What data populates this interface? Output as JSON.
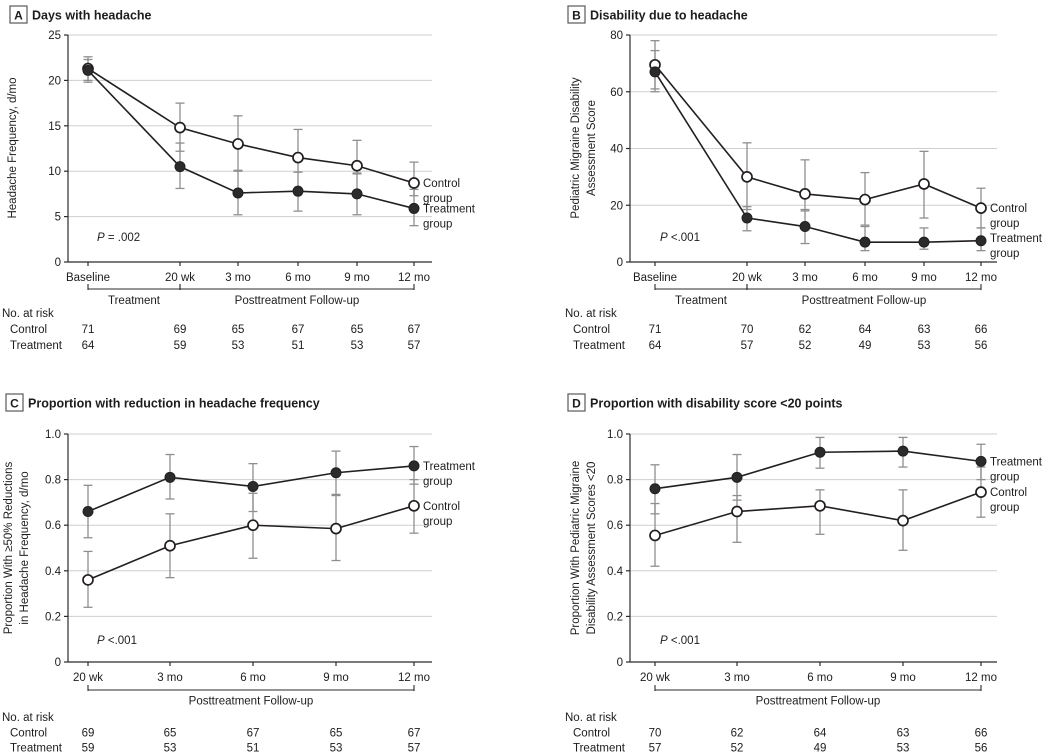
{
  "colors": {
    "line": "#231f20",
    "marker_fill": "#2b2b2b",
    "marker_open_fill": "#ffffff",
    "error_bar": "#8f8f8f",
    "gridline": "#cfcfcf",
    "axis": "#2b2b2b",
    "text": "#1d1d1f",
    "panel_box_border": "#58595b",
    "background": "#ffffff"
  },
  "chart_data": [
    {
      "id": "A",
      "type": "line",
      "panel_label": "A",
      "title": "Days with headache",
      "ylabel_lines": [
        "Headache Frequency, d/mo"
      ],
      "ylim": [
        0,
        25
      ],
      "yticks": [
        0,
        5,
        10,
        15,
        20,
        25
      ],
      "ytick_labels": [
        "0",
        "5",
        "10",
        "15",
        "20",
        "25"
      ],
      "categories": [
        "Baseline",
        "20 wk",
        "3 mo",
        "6 mo",
        "9 mo",
        "12 mo"
      ],
      "p_label": "P = .002",
      "grid": true,
      "legend_position": "right-of-last-point",
      "brackets": [
        {
          "from": 0,
          "to": 1,
          "label": "Treatment"
        },
        {
          "from": 1,
          "to": 5,
          "label": "Posttreatment Follow-up"
        }
      ],
      "series": [
        {
          "name": "Control group",
          "legend_lines": [
            "Control",
            "group"
          ],
          "marker": "open",
          "values": [
            21.3,
            14.8,
            13.0,
            11.5,
            10.6,
            8.7
          ],
          "ci_low": [
            20.0,
            12.2,
            10.0,
            9.9,
            9.7,
            7.3
          ],
          "ci_high": [
            22.6,
            17.5,
            16.1,
            14.6,
            13.4,
            11.0
          ]
        },
        {
          "name": "Treatment group",
          "legend_lines": [
            "Treatment",
            "group"
          ],
          "marker": "filled",
          "values": [
            21.1,
            10.5,
            7.6,
            7.8,
            7.5,
            5.9
          ],
          "ci_low": [
            19.8,
            8.1,
            5.2,
            5.6,
            5.2,
            4.0
          ],
          "ci_high": [
            22.3,
            13.1,
            10.1,
            9.9,
            9.8,
            8.0
          ]
        }
      ],
      "at_risk": {
        "title": "No. at risk",
        "rows": [
          {
            "label": "Control",
            "values": [
              "71",
              "69",
              "65",
              "67",
              "65",
              "67"
            ]
          },
          {
            "label": "Treatment",
            "values": [
              "64",
              "59",
              "53",
              "51",
              "53",
              "57"
            ]
          }
        ]
      }
    },
    {
      "id": "B",
      "type": "line",
      "panel_label": "B",
      "title": "Disability due to headache",
      "ylabel_lines": [
        "Pediatric Migraine Disability",
        "Assessment Score"
      ],
      "ylim": [
        0,
        80
      ],
      "yticks": [
        0,
        20,
        40,
        60,
        80
      ],
      "ytick_labels": [
        "0",
        "20",
        "40",
        "60",
        "80"
      ],
      "categories": [
        "Baseline",
        "20 wk",
        "3 mo",
        "6 mo",
        "9 mo",
        "12 mo"
      ],
      "p_label": "P <.001",
      "grid": true,
      "legend_position": "right-of-last-point",
      "brackets": [
        {
          "from": 0,
          "to": 1,
          "label": "Treatment"
        },
        {
          "from": 1,
          "to": 5,
          "label": "Posttreatment Follow-up"
        }
      ],
      "series": [
        {
          "name": "Control group",
          "legend_lines": [
            "Control",
            "group"
          ],
          "marker": "open",
          "values": [
            69.5,
            30,
            24,
            22,
            27.5,
            19
          ],
          "ci_low": [
            61,
            18.5,
            18,
            13,
            15.5,
            12
          ],
          "ci_high": [
            78,
            42,
            36,
            31.5,
            39,
            26
          ]
        },
        {
          "name": "Treatment group",
          "legend_lines": [
            "Treatment",
            "group"
          ],
          "marker": "filled",
          "values": [
            67,
            15.5,
            12.5,
            7,
            7,
            7.5
          ],
          "ci_low": [
            60,
            11,
            6.5,
            4,
            4.5,
            4
          ],
          "ci_high": [
            74.5,
            19.5,
            18.5,
            12.5,
            12,
            12
          ]
        }
      ],
      "at_risk": {
        "title": "No. at risk",
        "rows": [
          {
            "label": "Control",
            "values": [
              "71",
              "70",
              "62",
              "64",
              "63",
              "66"
            ]
          },
          {
            "label": "Treatment",
            "values": [
              "64",
              "57",
              "52",
              "49",
              "53",
              "56"
            ]
          }
        ]
      }
    },
    {
      "id": "C",
      "type": "line",
      "panel_label": "C",
      "title": "Proportion with reduction in headache frequency",
      "ylabel_lines": [
        "Proportion With ≥50% Reductions",
        "in Headache Frequency, d/mo"
      ],
      "ylim": [
        0,
        1
      ],
      "yticks": [
        0,
        0.2,
        0.4,
        0.6,
        0.8,
        1.0
      ],
      "ytick_labels": [
        "0",
        "0.2",
        "0.4",
        "0.6",
        "0.8",
        "1.0"
      ],
      "categories": [
        "20 wk",
        "3 mo",
        "6 mo",
        "9 mo",
        "12 mo"
      ],
      "p_label": "P <.001",
      "grid": true,
      "legend_position": "right-of-last-point",
      "brackets": [
        {
          "from": 0,
          "to": 4,
          "label": "Posttreatment Follow-up"
        }
      ],
      "series": [
        {
          "name": "Treatment group",
          "legend_lines": [
            "Treatment",
            "group"
          ],
          "marker": "filled",
          "values": [
            0.66,
            0.81,
            0.77,
            0.83,
            0.86
          ],
          "ci_low": [
            0.545,
            0.715,
            0.66,
            0.735,
            0.78
          ],
          "ci_high": [
            0.775,
            0.91,
            0.87,
            0.925,
            0.945
          ]
        },
        {
          "name": "Control group",
          "legend_lines": [
            "Control",
            "group"
          ],
          "marker": "open",
          "values": [
            0.36,
            0.51,
            0.6,
            0.585,
            0.685
          ],
          "ci_low": [
            0.24,
            0.37,
            0.455,
            0.445,
            0.565
          ],
          "ci_high": [
            0.485,
            0.65,
            0.74,
            0.73,
            0.8
          ]
        }
      ],
      "at_risk": {
        "title": "No. at risk",
        "rows": [
          {
            "label": "Control",
            "values": [
              "69",
              "65",
              "67",
              "65",
              "67"
            ]
          },
          {
            "label": "Treatment",
            "values": [
              "59",
              "53",
              "51",
              "53",
              "57"
            ]
          }
        ]
      }
    },
    {
      "id": "D",
      "type": "line",
      "panel_label": "D",
      "title": "Proportion with disability score <20 points",
      "ylabel_lines": [
        "Proportion With Pediatric Migraine",
        "Disability Assessment Scores <20"
      ],
      "ylim": [
        0,
        1
      ],
      "yticks": [
        0,
        0.2,
        0.4,
        0.6,
        0.8,
        1.0
      ],
      "ytick_labels": [
        "0",
        "0.2",
        "0.4",
        "0.6",
        "0.8",
        "1.0"
      ],
      "categories": [
        "20 wk",
        "3 mo",
        "6 mo",
        "9 mo",
        "12 mo"
      ],
      "p_label": "P <.001",
      "grid": true,
      "legend_position": "right-of-last-point",
      "brackets": [
        {
          "from": 0,
          "to": 4,
          "label": "Posttreatment Follow-up"
        }
      ],
      "series": [
        {
          "name": "Treatment group",
          "legend_lines": [
            "Treatment",
            "group"
          ],
          "marker": "filled",
          "values": [
            0.76,
            0.81,
            0.92,
            0.925,
            0.88
          ],
          "ci_low": [
            0.65,
            0.71,
            0.85,
            0.855,
            0.8
          ],
          "ci_high": [
            0.865,
            0.91,
            0.985,
            0.985,
            0.955
          ]
        },
        {
          "name": "Control group",
          "legend_lines": [
            "Control",
            "group"
          ],
          "marker": "open",
          "values": [
            0.555,
            0.66,
            0.685,
            0.62,
            0.745
          ],
          "ci_low": [
            0.42,
            0.525,
            0.56,
            0.49,
            0.635
          ],
          "ci_high": [
            0.695,
            0.73,
            0.755,
            0.755,
            0.855
          ]
        }
      ],
      "at_risk": {
        "title": "No. at risk",
        "rows": [
          {
            "label": "Control",
            "values": [
              "70",
              "62",
              "64",
              "63",
              "66"
            ]
          },
          {
            "label": "Treatment",
            "values": [
              "57",
              "52",
              "49",
              "53",
              "56"
            ]
          }
        ]
      }
    }
  ]
}
